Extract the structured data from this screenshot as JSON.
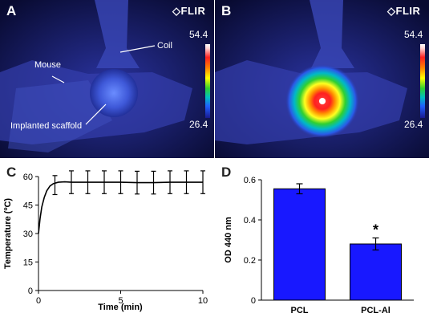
{
  "panel_a": {
    "letter": "A",
    "brand": "FLIR",
    "scale_max": "54.4",
    "scale_min": "26.4",
    "labels": {
      "coil": "Coil",
      "mouse": "Mouse",
      "scaffold": "Implanted scaffold"
    }
  },
  "panel_b": {
    "letter": "B",
    "brand": "FLIR",
    "scale_max": "54.4",
    "scale_min": "26.4"
  },
  "panel_c": {
    "letter": "C"
  },
  "panel_d": {
    "letter": "D"
  },
  "chart_data": [
    {
      "panel": "C",
      "type": "line",
      "xlabel": "Time (min)",
      "ylabel": "Temperature (ºC)",
      "xlim": [
        0,
        10
      ],
      "ylim": [
        0,
        60
      ],
      "xticks": [
        0,
        5,
        10
      ],
      "yticks": [
        0,
        15,
        30,
        45,
        60
      ],
      "xticklabels": [
        "0",
        "5",
        "10"
      ],
      "yticklabels": [
        "0",
        "15",
        "30",
        "45",
        "60"
      ],
      "grid": false,
      "curve": {
        "x": [
          0,
          0.1,
          0.2,
          0.35,
          0.5,
          0.7,
          0.9,
          1.2,
          1.6,
          2,
          3,
          4,
          5,
          6,
          7,
          8,
          9,
          10
        ],
        "y": [
          30,
          38,
          44,
          49,
          52.5,
          55,
          56.3,
          57,
          57.2,
          57,
          57,
          57,
          57,
          56.8,
          56.8,
          57,
          57,
          57
        ]
      },
      "error_bars": {
        "x": [
          1,
          2,
          3,
          4,
          5,
          6,
          7,
          8,
          9,
          10
        ],
        "y": [
          55.5,
          57,
          57,
          57,
          57,
          56.8,
          56.8,
          57,
          57,
          57
        ],
        "err": [
          5,
          6,
          6,
          6,
          6,
          6,
          6,
          6,
          6,
          6
        ]
      }
    },
    {
      "panel": "D",
      "type": "bar",
      "categories": [
        "PCL",
        "PCL-Al"
      ],
      "values": [
        0.555,
        0.28
      ],
      "errors": [
        0.025,
        0.03
      ],
      "ylabel": "OD 440 nm",
      "ylim": [
        0,
        0.6
      ],
      "yticks": [
        0,
        0.2,
        0.4,
        0.6
      ],
      "yticklabels": [
        "0",
        "0.2",
        "0.4",
        "0.6"
      ],
      "bar_color": "#1818ff",
      "annotation": "*",
      "annotation_on": "PCL-Al"
    }
  ]
}
